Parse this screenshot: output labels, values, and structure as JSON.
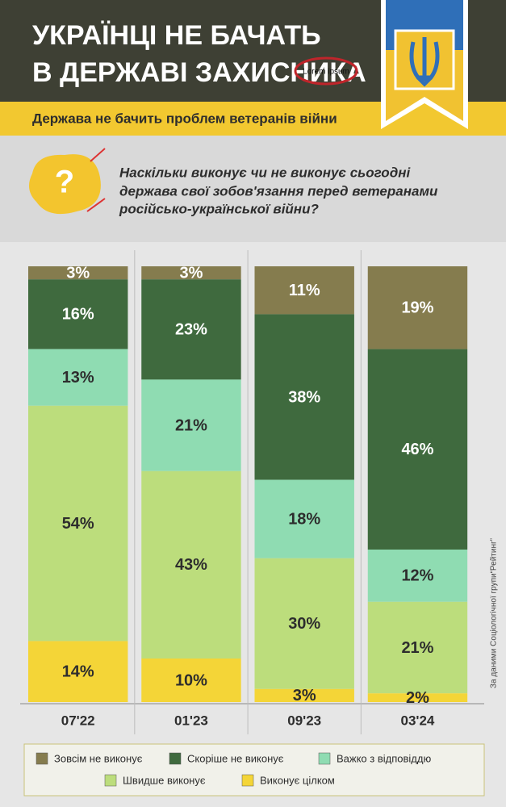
{
  "chart_data": {
    "type": "bar",
    "stacked": true,
    "title": [
      "УКРАЇНЦІ НЕ БАЧАТЬ",
      "В ДЕРЖАВІ ЗАХИСНИКА"
    ],
    "annotation": "Lorem ipsum",
    "subtitle": "Держава не бачить проблем ветеранів війни",
    "question": [
      "Наскільки виконує чи не виконує сьогодні",
      "держава свої зобов'язання перед ветеранами",
      "російсько-української війни?"
    ],
    "source": "За даними Соціологічної групи“Рейтинг”",
    "categories": [
      "07'22",
      "01'23",
      "09'23",
      "03'24"
    ],
    "ylim": [
      0,
      100
    ],
    "series": [
      {
        "name": "Зовсім не виконує",
        "color": "#857c4e",
        "values": [
          3,
          3,
          11,
          19
        ],
        "value_labels": [
          "3%",
          "3%",
          "11%",
          "19%"
        ]
      },
      {
        "name": "Скоріше не виконує",
        "color": "#3f6a3e",
        "values": [
          16,
          23,
          38,
          46
        ],
        "value_labels": [
          "16%",
          "23%",
          "38%",
          "46%"
        ]
      },
      {
        "name": "Важко з відповіддю",
        "color": "#8fdcb2",
        "values": [
          13,
          21,
          18,
          12
        ],
        "value_labels": [
          "13%",
          "21%",
          "18%",
          "12%"
        ]
      },
      {
        "name": "Швидше виконує",
        "color": "#bcdd7c",
        "values": [
          54,
          43,
          30,
          21
        ],
        "value_labels": [
          "54%",
          "43%",
          "30%",
          "21%"
        ]
      },
      {
        "name": "Виконує цілком",
        "color": "#f4d537",
        "values": [
          14,
          10,
          3,
          2
        ],
        "value_labels": [
          "14%",
          "10%",
          "3%",
          "2%"
        ]
      }
    ]
  }
}
